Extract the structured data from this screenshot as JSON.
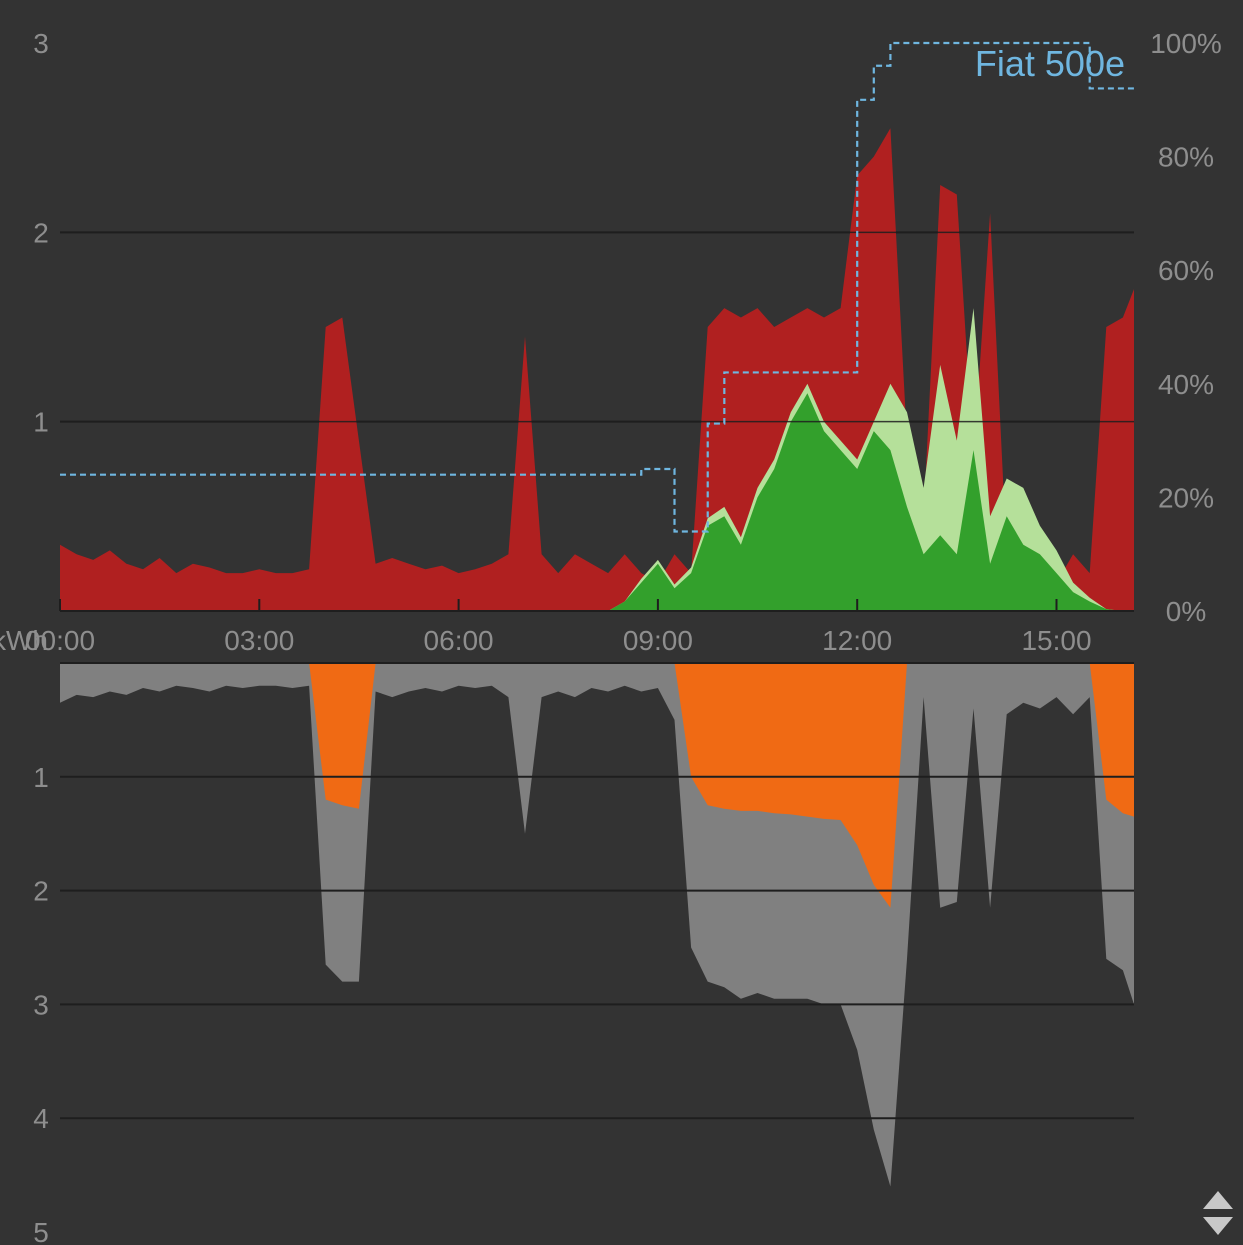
{
  "colors": {
    "background": "#333333",
    "grid": "#1e1e1e",
    "tick_text": "#8e8e8e",
    "grid_import": "#b02020",
    "solar_self": "#33a02c",
    "solar_export": "#b5e09a",
    "battery": "#f06a14",
    "consumption": "#808080",
    "ev_soc": "#6fb6e0",
    "resize_handle": "#c8c8c8"
  },
  "icons": {
    "resize_handle": "resize-vertical-icon"
  },
  "chart_data": [
    {
      "type": "area",
      "panel": "production",
      "x": [
        "00:00",
        "00:15",
        "00:30",
        "00:45",
        "01:00",
        "01:15",
        "01:30",
        "01:45",
        "02:00",
        "02:15",
        "02:30",
        "02:45",
        "03:00",
        "03:15",
        "03:30",
        "03:45",
        "04:00",
        "04:15",
        "04:30",
        "04:45",
        "05:00",
        "05:15",
        "05:30",
        "05:45",
        "06:00",
        "06:15",
        "06:30",
        "06:45",
        "07:00",
        "07:15",
        "07:30",
        "07:45",
        "08:00",
        "08:15",
        "08:30",
        "08:45",
        "09:00",
        "09:15",
        "09:30",
        "09:45",
        "10:00",
        "10:15",
        "10:30",
        "10:45",
        "11:00",
        "11:15",
        "11:30",
        "11:45",
        "12:00",
        "12:15",
        "12:30",
        "12:45",
        "13:00",
        "13:15",
        "13:30",
        "13:45",
        "14:00",
        "14:15",
        "14:30",
        "14:45",
        "15:00",
        "15:15",
        "15:30",
        "15:45",
        "16:00",
        "16:10"
      ],
      "series": [
        {
          "id": "grid_import",
          "values": [
            0.35,
            0.3,
            0.27,
            0.32,
            0.25,
            0.22,
            0.28,
            0.2,
            0.25,
            0.23,
            0.2,
            0.2,
            0.22,
            0.2,
            0.2,
            0.22,
            1.5,
            1.55,
            0.9,
            0.25,
            0.28,
            0.25,
            0.22,
            0.24,
            0.2,
            0.22,
            0.25,
            0.3,
            1.45,
            0.3,
            0.2,
            0.3,
            0.25,
            0.2,
            0.3,
            0.2,
            0.15,
            0.3,
            0.2,
            1.5,
            1.6,
            1.55,
            1.6,
            1.5,
            1.55,
            1.6,
            1.55,
            1.6,
            2.3,
            2.4,
            2.55,
            0.9,
            0.5,
            2.25,
            2.2,
            0.8,
            2.1,
            0.3,
            0.2,
            0.3,
            0.15,
            0.3,
            0.2,
            1.5,
            1.55,
            1.7
          ]
        },
        {
          "id": "solar_self",
          "values": [
            0,
            0,
            0,
            0,
            0,
            0,
            0,
            0,
            0,
            0,
            0,
            0,
            0,
            0,
            0,
            0,
            0,
            0,
            0,
            0,
            0,
            0,
            0,
            0,
            0,
            0,
            0,
            0,
            0,
            0,
            0,
            0,
            0,
            0,
            0.05,
            0.15,
            0.25,
            0.12,
            0.2,
            0.45,
            0.5,
            0.35,
            0.6,
            0.75,
            1.0,
            1.15,
            0.95,
            0.85,
            0.75,
            0.95,
            0.85,
            0.55,
            0.3,
            0.4,
            0.3,
            0.85,
            0.25,
            0.5,
            0.35,
            0.3,
            0.2,
            0.1,
            0.05,
            0.01,
            0.0,
            0.0
          ]
        },
        {
          "id": "solar_export",
          "values": [
            0,
            0,
            0,
            0,
            0,
            0,
            0,
            0,
            0,
            0,
            0,
            0,
            0,
            0,
            0,
            0,
            0,
            0,
            0,
            0,
            0,
            0,
            0,
            0,
            0,
            0,
            0,
            0,
            0,
            0,
            0,
            0,
            0,
            0,
            0,
            0.02,
            0.02,
            0.02,
            0.03,
            0.04,
            0.05,
            0.04,
            0.05,
            0.05,
            0.05,
            0.05,
            0.05,
            0.05,
            0.05,
            0.05,
            0.35,
            0.5,
            0.35,
            0.9,
            0.6,
            0.75,
            0.25,
            0.2,
            0.3,
            0.15,
            0.12,
            0.05,
            0.02,
            0,
            0,
            0
          ]
        },
        {
          "id": "ev_soc",
          "unit": "%",
          "values": [
            24,
            24,
            24,
            24,
            24,
            24,
            24,
            24,
            24,
            24,
            24,
            24,
            24,
            24,
            24,
            24,
            24,
            24,
            24,
            24,
            24,
            24,
            24,
            24,
            24,
            24,
            24,
            24,
            24,
            24,
            24,
            24,
            24,
            24,
            24,
            25,
            25,
            14,
            14,
            33,
            42,
            42,
            42,
            42,
            42,
            42,
            42,
            42,
            90,
            96,
            100,
            100,
            100,
            100,
            100,
            100,
            100,
            100,
            100,
            100,
            100,
            100,
            92,
            92,
            92,
            92
          ]
        }
      ],
      "legend": "Fiat 500e",
      "y_ticks_left": [
        "1",
        "2",
        "3"
      ],
      "y_ticks_right": [
        "0%",
        "20%",
        "40%",
        "60%",
        "80%",
        "100%"
      ],
      "ylim": [
        0,
        3
      ],
      "y2lim": [
        0,
        100
      ]
    },
    {
      "type": "area",
      "panel": "consumption",
      "inverted": true,
      "x": [
        "00:00",
        "00:15",
        "00:30",
        "00:45",
        "01:00",
        "01:15",
        "01:30",
        "01:45",
        "02:00",
        "02:15",
        "02:30",
        "02:45",
        "03:00",
        "03:15",
        "03:30",
        "03:45",
        "04:00",
        "04:15",
        "04:30",
        "04:45",
        "05:00",
        "05:15",
        "05:30",
        "05:45",
        "06:00",
        "06:15",
        "06:30",
        "06:45",
        "07:00",
        "07:15",
        "07:30",
        "07:45",
        "08:00",
        "08:15",
        "08:30",
        "08:45",
        "09:00",
        "09:15",
        "09:30",
        "09:45",
        "10:00",
        "10:15",
        "10:30",
        "10:45",
        "11:00",
        "11:15",
        "11:30",
        "11:45",
        "12:00",
        "12:15",
        "12:30",
        "12:45",
        "13:00",
        "13:15",
        "13:30",
        "13:45",
        "14:00",
        "14:15",
        "14:30",
        "14:45",
        "15:00",
        "15:15",
        "15:30",
        "15:45",
        "16:00",
        "16:10"
      ],
      "series": [
        {
          "id": "consumption_total",
          "values": [
            0.35,
            0.28,
            0.3,
            0.25,
            0.28,
            0.22,
            0.25,
            0.2,
            0.22,
            0.25,
            0.2,
            0.22,
            0.2,
            0.2,
            0.22,
            0.2,
            2.65,
            2.8,
            2.8,
            0.25,
            0.3,
            0.25,
            0.22,
            0.25,
            0.2,
            0.22,
            0.2,
            0.3,
            1.5,
            0.3,
            0.25,
            0.3,
            0.22,
            0.25,
            0.2,
            0.25,
            0.22,
            0.5,
            2.5,
            2.8,
            2.85,
            2.95,
            2.9,
            2.95,
            2.95,
            2.95,
            3.0,
            3.0,
            3.4,
            4.1,
            4.6,
            2.6,
            0.3,
            2.15,
            2.1,
            0.4,
            2.15,
            0.45,
            0.35,
            0.4,
            0.3,
            0.45,
            0.3,
            2.6,
            2.7,
            3.0
          ]
        },
        {
          "id": "battery_discharge",
          "values": [
            0,
            0,
            0,
            0,
            0,
            0,
            0,
            0,
            0,
            0,
            0,
            0,
            0,
            0,
            0,
            0,
            1.2,
            1.25,
            1.28,
            0,
            0,
            0,
            0,
            0,
            0,
            0,
            0,
            0,
            0,
            0,
            0,
            0,
            0,
            0,
            0,
            0,
            0,
            0,
            1.0,
            1.25,
            1.28,
            1.3,
            1.3,
            1.32,
            1.33,
            1.35,
            1.37,
            1.38,
            1.6,
            1.95,
            2.15,
            0,
            0,
            0,
            0,
            0,
            0,
            0,
            0,
            0,
            0,
            0,
            0,
            1.2,
            1.32,
            1.35
          ]
        }
      ],
      "y_ticks_left": [
        "1",
        "2",
        "3",
        "4",
        "5"
      ],
      "ylim": [
        0,
        5
      ]
    }
  ],
  "x_axis": {
    "ticks": [
      "00:00",
      "03:00",
      "06:00",
      "09:00",
      "12:00",
      "15:00"
    ],
    "unit": "kWh"
  }
}
